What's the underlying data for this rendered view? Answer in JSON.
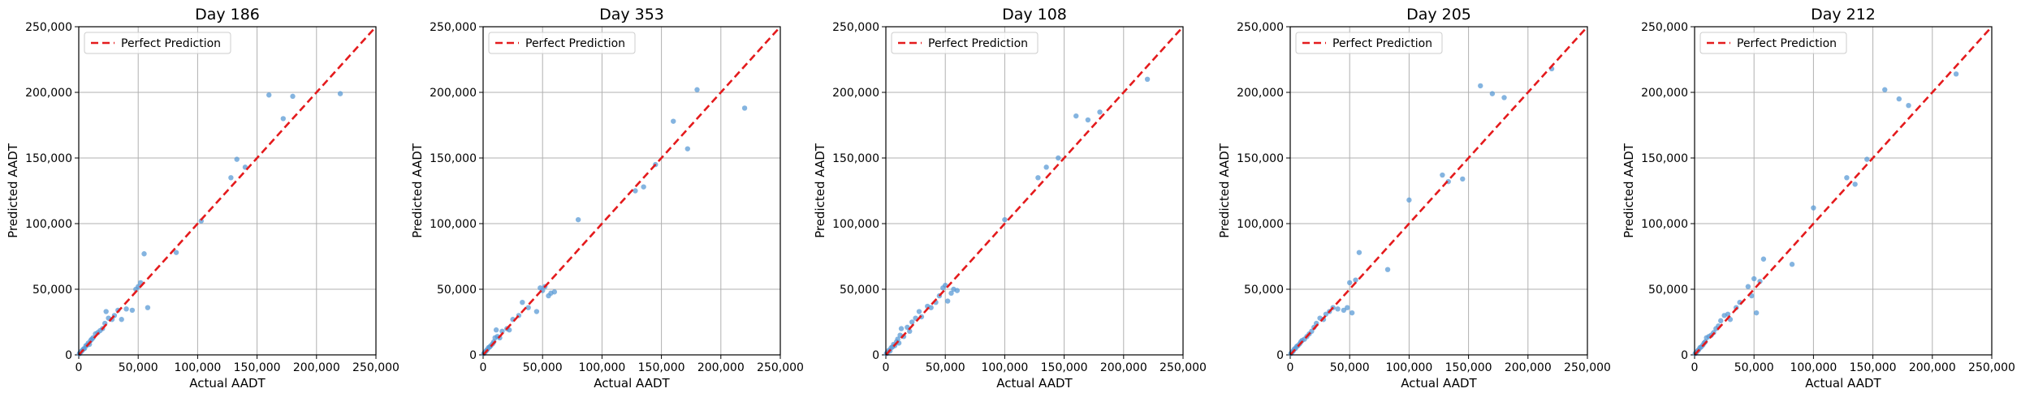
{
  "chart_data": [
    {
      "type": "scatter",
      "title": "Day 186",
      "xlabel": "Actual AADT",
      "ylabel": "Predicted AADT",
      "xlim": [
        0,
        250000
      ],
      "ylim": [
        0,
        250000
      ],
      "xticks": [
        "0",
        "50,000",
        "100,000",
        "150,000",
        "200,000",
        "250,000"
      ],
      "yticks": [
        "0",
        "50,000",
        "100,000",
        "150,000",
        "200,000",
        "250,000"
      ],
      "grid": true,
      "legend": {
        "placement": "top-left",
        "entries": [
          "Perfect Prediction"
        ]
      },
      "reference_line": {
        "name": "Perfect Prediction",
        "from": [
          0,
          0
        ],
        "to": [
          250000,
          250000
        ],
        "color": "#e41a1c",
        "style": "dashed"
      },
      "points_color": "#5b9bd5",
      "points": [
        [
          500,
          800
        ],
        [
          1000,
          1500
        ],
        [
          2000,
          2500
        ],
        [
          3000,
          3500
        ],
        [
          4000,
          4500
        ],
        [
          5000,
          5000
        ],
        [
          6000,
          7000
        ],
        [
          7000,
          7500
        ],
        [
          8000,
          9000
        ],
        [
          9000,
          8000
        ],
        [
          10000,
          11000
        ],
        [
          11000,
          12000
        ],
        [
          12000,
          13000
        ],
        [
          14000,
          16000
        ],
        [
          16000,
          17000
        ],
        [
          18000,
          18500
        ],
        [
          20000,
          20000
        ],
        [
          22000,
          24000
        ],
        [
          23000,
          33000
        ],
        [
          25000,
          28000
        ],
        [
          28000,
          27000
        ],
        [
          30000,
          30000
        ],
        [
          33000,
          34000
        ],
        [
          36000,
          27000
        ],
        [
          40000,
          35000
        ],
        [
          45000,
          34000
        ],
        [
          48000,
          50000
        ],
        [
          50000,
          52000
        ],
        [
          52000,
          55000
        ],
        [
          55000,
          77000
        ],
        [
          58000,
          36000
        ],
        [
          82000,
          78000
        ],
        [
          103000,
          102000
        ],
        [
          128000,
          135000
        ],
        [
          133000,
          149000
        ],
        [
          140000,
          143000
        ],
        [
          160000,
          198000
        ],
        [
          172000,
          180000
        ],
        [
          180000,
          197000
        ],
        [
          220000,
          199000
        ]
      ]
    },
    {
      "type": "scatter",
      "title": "Day 353",
      "xlabel": "Actual AADT",
      "ylabel": "Predicted AADT",
      "xlim": [
        0,
        250000
      ],
      "ylim": [
        0,
        250000
      ],
      "xticks": [
        "0",
        "50,000",
        "100,000",
        "150,000",
        "200,000",
        "250,000"
      ],
      "yticks": [
        "0",
        "50,000",
        "100,000",
        "150,000",
        "200,000",
        "250,000"
      ],
      "grid": true,
      "legend": {
        "placement": "top-left",
        "entries": [
          "Perfect Prediction"
        ]
      },
      "reference_line": {
        "name": "Perfect Prediction",
        "from": [
          0,
          0
        ],
        "to": [
          250000,
          250000
        ],
        "color": "#e41a1c",
        "style": "dashed"
      },
      "points_color": "#5b9bd5",
      "points": [
        [
          500,
          1000
        ],
        [
          1500,
          2000
        ],
        [
          2500,
          3000
        ],
        [
          3500,
          4000
        ],
        [
          4500,
          5500
        ],
        [
          5500,
          6000
        ],
        [
          6500,
          7000
        ],
        [
          8000,
          8500
        ],
        [
          9000,
          10000
        ],
        [
          10000,
          13000
        ],
        [
          11000,
          19000
        ],
        [
          12000,
          14000
        ],
        [
          14000,
          13000
        ],
        [
          16000,
          18000
        ],
        [
          20000,
          20000
        ],
        [
          22000,
          19000
        ],
        [
          25000,
          27000
        ],
        [
          30000,
          30000
        ],
        [
          33000,
          40000
        ],
        [
          38000,
          36000
        ],
        [
          45000,
          33000
        ],
        [
          48000,
          51000
        ],
        [
          50000,
          49000
        ],
        [
          52000,
          52000
        ],
        [
          55000,
          45000
        ],
        [
          57000,
          47000
        ],
        [
          60000,
          48000
        ],
        [
          80000,
          103000
        ],
        [
          128000,
          125000
        ],
        [
          135000,
          128000
        ],
        [
          145000,
          145000
        ],
        [
          160000,
          178000
        ],
        [
          172000,
          157000
        ],
        [
          180000,
          202000
        ],
        [
          220000,
          188000
        ]
      ]
    },
    {
      "type": "scatter",
      "title": "Day 108",
      "xlabel": "Actual AADT",
      "ylabel": "Predicted AADT",
      "xlim": [
        0,
        250000
      ],
      "ylim": [
        0,
        250000
      ],
      "xticks": [
        "0",
        "50,000",
        "100,000",
        "150,000",
        "200,000",
        "250,000"
      ],
      "yticks": [
        "0",
        "50,000",
        "100,000",
        "150,000",
        "200,000",
        "250,000"
      ],
      "grid": true,
      "legend": {
        "placement": "top-left",
        "entries": [
          "Perfect Prediction"
        ]
      },
      "reference_line": {
        "name": "Perfect Prediction",
        "from": [
          0,
          0
        ],
        "to": [
          250000,
          250000
        ],
        "color": "#e41a1c",
        "style": "dashed"
      },
      "points_color": "#5b9bd5",
      "points": [
        [
          500,
          1000
        ],
        [
          1500,
          2000
        ],
        [
          2500,
          3500
        ],
        [
          3500,
          3000
        ],
        [
          4500,
          5500
        ],
        [
          5500,
          6000
        ],
        [
          6500,
          8000
        ],
        [
          7500,
          7000
        ],
        [
          9000,
          10000
        ],
        [
          10000,
          12000
        ],
        [
          11000,
          9000
        ],
        [
          12000,
          15000
        ],
        [
          13000,
          20000
        ],
        [
          15000,
          14000
        ],
        [
          18000,
          21000
        ],
        [
          20000,
          18000
        ],
        [
          22000,
          25000
        ],
        [
          25000,
          28000
        ],
        [
          28000,
          33000
        ],
        [
          30000,
          29000
        ],
        [
          35000,
          37000
        ],
        [
          38000,
          36000
        ],
        [
          42000,
          40000
        ],
        [
          45000,
          45000
        ],
        [
          48000,
          51000
        ],
        [
          50000,
          53000
        ],
        [
          52000,
          41000
        ],
        [
          55000,
          47000
        ],
        [
          57000,
          50000
        ],
        [
          60000,
          49000
        ],
        [
          100000,
          103000
        ],
        [
          128000,
          135000
        ],
        [
          135000,
          143000
        ],
        [
          145000,
          150000
        ],
        [
          160000,
          182000
        ],
        [
          170000,
          179000
        ],
        [
          180000,
          185000
        ],
        [
          220000,
          210000
        ]
      ]
    },
    {
      "type": "scatter",
      "title": "Day 205",
      "xlabel": "Actual AADT",
      "ylabel": "Predicted AADT",
      "xlim": [
        0,
        250000
      ],
      "ylim": [
        0,
        250000
      ],
      "xticks": [
        "0",
        "50,000",
        "100,000",
        "150,000",
        "200,000",
        "250,000"
      ],
      "yticks": [
        "0",
        "50,000",
        "100,000",
        "150,000",
        "200,000",
        "250,000"
      ],
      "grid": true,
      "legend": {
        "placement": "top-left",
        "entries": [
          "Perfect Prediction"
        ]
      },
      "reference_line": {
        "name": "Perfect Prediction",
        "from": [
          0,
          0
        ],
        "to": [
          250000,
          250000
        ],
        "color": "#e41a1c",
        "style": "dashed"
      },
      "points_color": "#5b9bd5",
      "points": [
        [
          500,
          1000
        ],
        [
          1500,
          2000
        ],
        [
          2500,
          3000
        ],
        [
          3500,
          4500
        ],
        [
          4500,
          5000
        ],
        [
          5500,
          6500
        ],
        [
          6500,
          7000
        ],
        [
          8000,
          8500
        ],
        [
          9000,
          10000
        ],
        [
          10000,
          11000
        ],
        [
          12000,
          12000
        ],
        [
          14000,
          14000
        ],
        [
          16000,
          16000
        ],
        [
          18000,
          18000
        ],
        [
          20000,
          21000
        ],
        [
          22000,
          24000
        ],
        [
          25000,
          28000
        ],
        [
          28000,
          27000
        ],
        [
          30000,
          31000
        ],
        [
          33000,
          33000
        ],
        [
          36000,
          36000
        ],
        [
          40000,
          35000
        ],
        [
          45000,
          34000
        ],
        [
          48000,
          36000
        ],
        [
          50000,
          55000
        ],
        [
          52000,
          32000
        ],
        [
          55000,
          57000
        ],
        [
          58000,
          78000
        ],
        [
          82000,
          65000
        ],
        [
          100000,
          118000
        ],
        [
          128000,
          137000
        ],
        [
          133000,
          132000
        ],
        [
          145000,
          134000
        ],
        [
          160000,
          205000
        ],
        [
          170000,
          199000
        ],
        [
          180000,
          196000
        ],
        [
          220000,
          218000
        ]
      ]
    },
    {
      "type": "scatter",
      "title": "Day 212",
      "xlabel": "Actual AADT",
      "ylabel": "Predicted AADT",
      "xlim": [
        0,
        250000
      ],
      "ylim": [
        0,
        250000
      ],
      "xticks": [
        "0",
        "50,000",
        "100,000",
        "150,000",
        "200,000",
        "250,000"
      ],
      "yticks": [
        "0",
        "50,000",
        "100,000",
        "150,000",
        "200,000",
        "250,000"
      ],
      "grid": true,
      "legend": {
        "placement": "top-left",
        "entries": [
          "Perfect Prediction"
        ]
      },
      "reference_line": {
        "name": "Perfect Prediction",
        "from": [
          0,
          0
        ],
        "to": [
          250000,
          250000
        ],
        "color": "#e41a1c",
        "style": "dashed"
      },
      "points_color": "#5b9bd5",
      "points": [
        [
          500,
          1000
        ],
        [
          1500,
          2000
        ],
        [
          2500,
          3000
        ],
        [
          3500,
          4000
        ],
        [
          4500,
          5500
        ],
        [
          5500,
          6000
        ],
        [
          7000,
          7500
        ],
        [
          8000,
          9000
        ],
        [
          9000,
          10000
        ],
        [
          10000,
          13000
        ],
        [
          12000,
          14000
        ],
        [
          14000,
          15000
        ],
        [
          16000,
          17000
        ],
        [
          18000,
          20000
        ],
        [
          20000,
          22000
        ],
        [
          22000,
          26000
        ],
        [
          25000,
          30000
        ],
        [
          28000,
          31000
        ],
        [
          30000,
          27000
        ],
        [
          35000,
          36000
        ],
        [
          38000,
          40000
        ],
        [
          45000,
          52000
        ],
        [
          48000,
          45000
        ],
        [
          50000,
          58000
        ],
        [
          52000,
          32000
        ],
        [
          55000,
          56000
        ],
        [
          58000,
          73000
        ],
        [
          82000,
          69000
        ],
        [
          100000,
          112000
        ],
        [
          128000,
          135000
        ],
        [
          135000,
          130000
        ],
        [
          145000,
          149000
        ],
        [
          160000,
          202000
        ],
        [
          172000,
          195000
        ],
        [
          180000,
          190000
        ],
        [
          220000,
          214000
        ]
      ]
    }
  ]
}
